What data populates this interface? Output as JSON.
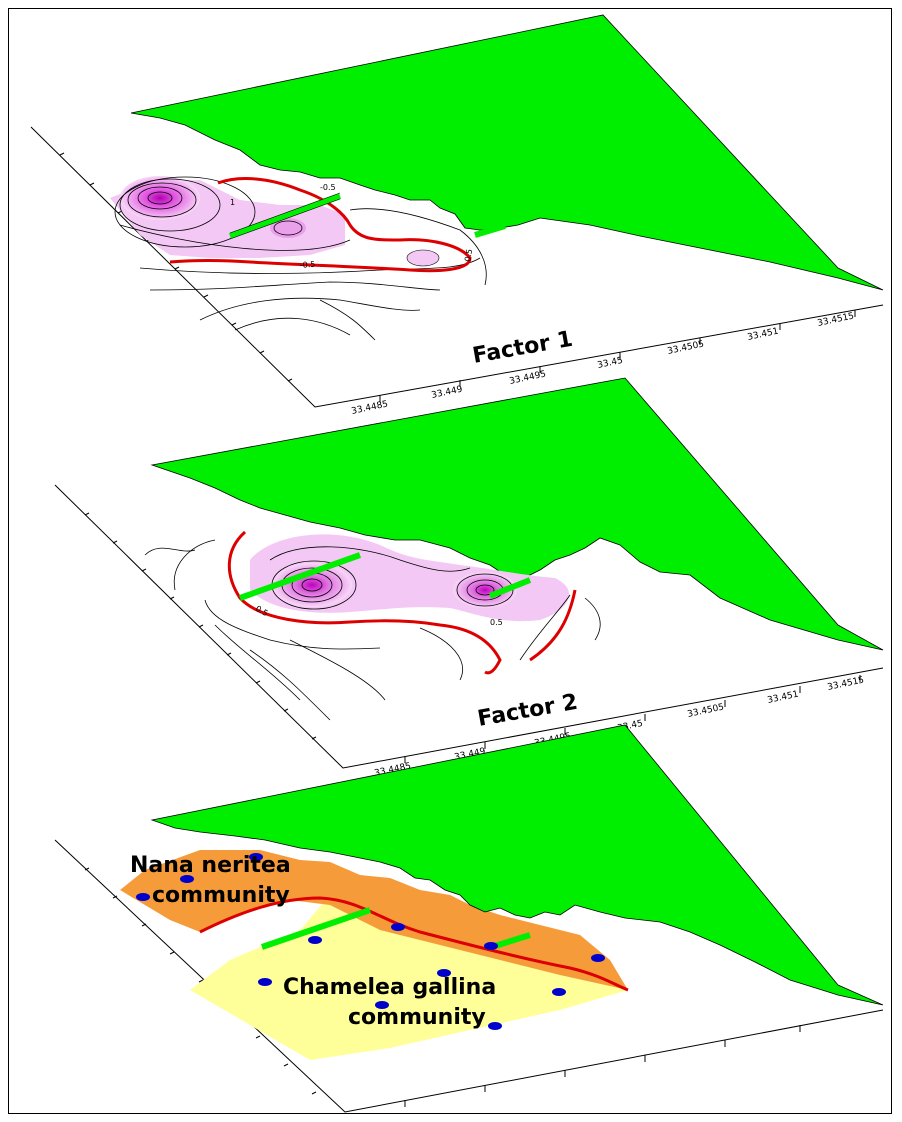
{
  "panels": [
    {
      "title": "Factor 1",
      "x_ticks": [
        "33.4485",
        "33.449",
        "33.4495",
        "33.45",
        "33.4505",
        "33.451",
        "33.4515"
      ],
      "contour_labels": [
        "-0.5",
        "1",
        "-0.5",
        "0.5"
      ]
    },
    {
      "title": "Factor 2",
      "x_ticks": [
        "33.4485",
        "33.449",
        "33.4495",
        "33.45",
        "33.4505",
        "33.451",
        "33.4515"
      ],
      "contour_labels": [
        "0.5",
        "0.5"
      ]
    },
    {
      "communities": [
        "Nana neritea community",
        "Chamelea gallina community"
      ],
      "community_lines": [
        [
          "Nana neritea",
          "community"
        ],
        [
          "Chamelea gallina",
          "community"
        ]
      ]
    }
  ],
  "colors": {
    "land": "#00ee00",
    "contour_highlight": "#dd0000",
    "factor_fill_light": "#f4c8f4",
    "factor_fill_dark": "#d020d0",
    "nana_zone": "#f59b3a",
    "chamelea_zone": "#ffff99",
    "stations": "#0000cc"
  }
}
